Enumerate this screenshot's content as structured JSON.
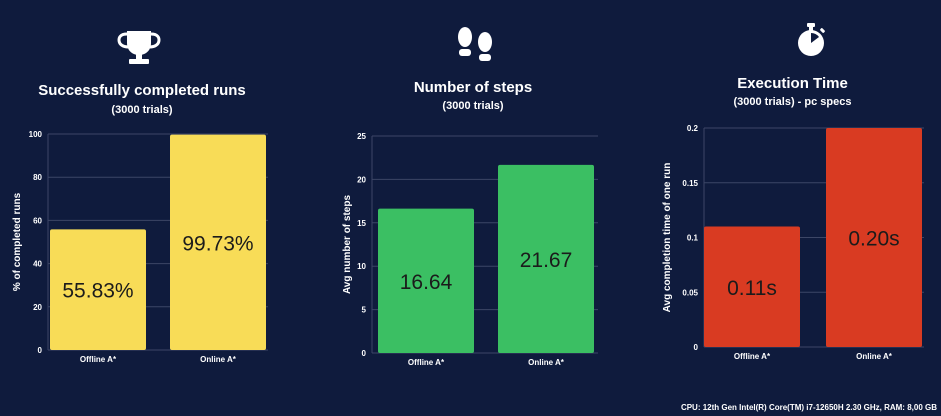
{
  "colors": {
    "background": "#0f1b3d",
    "grid": "#3c4666",
    "yellow": "#f8dc57",
    "green": "#3bbf63",
    "red": "#d93b22"
  },
  "panels": [
    {
      "icon": "trophy-icon",
      "title": "Successfully completed runs",
      "subtitle": "(3000 trials)"
    },
    {
      "icon": "footprints-icon",
      "title": "Number of steps",
      "subtitle": "(3000 trials)"
    },
    {
      "icon": "stopwatch-icon",
      "title": "Execution Time",
      "subtitle": "(3000 trials) - pc specs"
    }
  ],
  "chart_data": [
    {
      "type": "bar",
      "title": "Successfully completed runs",
      "subtitle": "(3000 trials)",
      "categories": [
        "Offline A*",
        "Online A*"
      ],
      "values": [
        55.83,
        99.73
      ],
      "data_labels": [
        "55.83%",
        "99.73%"
      ],
      "ylabel": "% of completed runs",
      "xlabel": "",
      "ylim": [
        0,
        100
      ],
      "yticks": [
        0,
        20,
        40,
        60,
        80,
        100
      ],
      "ytick_labels": [
        "0",
        "20",
        "40",
        "60",
        "80",
        "100"
      ],
      "grid": true,
      "bar_color": "#f8dc57"
    },
    {
      "type": "bar",
      "title": "Number of steps",
      "subtitle": "(3000 trials)",
      "categories": [
        "Offline A*",
        "Online A*"
      ],
      "values": [
        16.64,
        21.67
      ],
      "data_labels": [
        "16.64",
        "21.67"
      ],
      "ylabel": "Avg number of steps",
      "xlabel": "",
      "ylim": [
        0,
        25
      ],
      "yticks": [
        0,
        5,
        10,
        15,
        20,
        25
      ],
      "ytick_labels": [
        "0",
        "5",
        "10",
        "15",
        "20",
        "25"
      ],
      "grid": true,
      "bar_color": "#3bbf63"
    },
    {
      "type": "bar",
      "title": "Execution Time",
      "subtitle": "(3000 trials) - pc specs",
      "categories": [
        "Offline A*",
        "Online A*"
      ],
      "values": [
        0.11,
        0.2
      ],
      "data_labels": [
        "0.11s",
        "0.20s"
      ],
      "ylabel": "Avg  completion time of one run",
      "xlabel": "",
      "ylim": [
        0,
        0.2
      ],
      "yticks": [
        0,
        0.05,
        0.1,
        0.15,
        0.2
      ],
      "ytick_labels": [
        "0",
        "0.05",
        "0.1",
        "0.15",
        "0.2"
      ],
      "grid": true,
      "bar_color": "#d93b22"
    }
  ],
  "footer": "CPU: 12th Gen Intel(R) Core(TM) i7-12650H 2.30 GHz, RAM: 8,00 GB"
}
